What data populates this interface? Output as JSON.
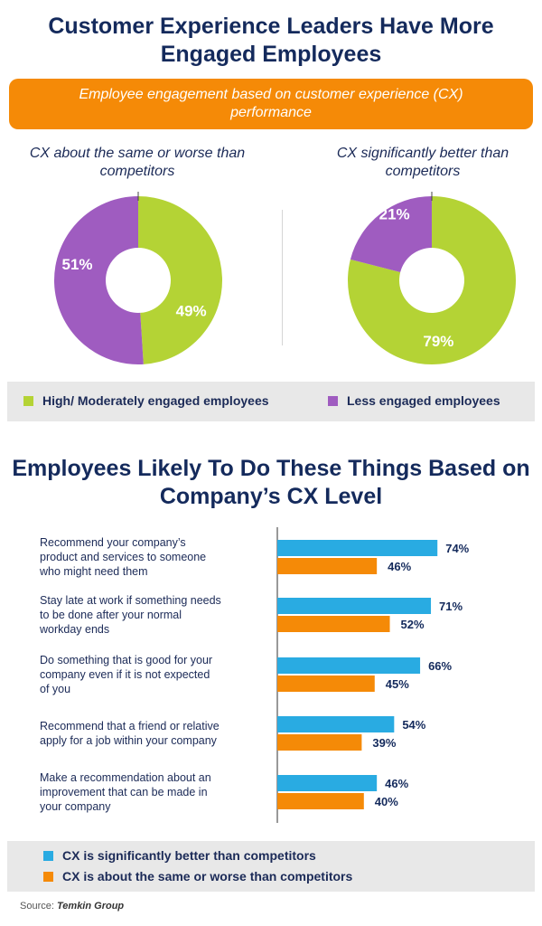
{
  "title": "Customer Experience Leaders Have More Engaged Employees",
  "banner": "Employee engagement based on customer experience (CX) performance",
  "colors": {
    "green": "#b4d335",
    "purple": "#9f5cc0",
    "blue": "#29abe2",
    "orange": "#f58a07",
    "navy": "#142a5c"
  },
  "donuts": {
    "left": {
      "caption": "CX about the same or worse than competitors",
      "high_label": "49%",
      "less_label": "51%"
    },
    "right": {
      "caption": "CX significantly better than competitors",
      "high_label": "79%",
      "less_label": "21%"
    }
  },
  "legend_top": {
    "high": "High/ Moderately engaged employees",
    "less": "Less engaged employees"
  },
  "title2": "Employees Likely To Do These Things Based on Company’s CX Level",
  "legend_bottom": {
    "better": "CX is significantly better than competitors",
    "same": "CX is about the same or worse than competitors"
  },
  "source": {
    "prefix": "Source:",
    "name": "Temkin Group"
  },
  "chart_data": [
    {
      "type": "pie",
      "title": "CX about the same or worse than competitors",
      "categories": [
        "High/ Moderately engaged employees",
        "Less engaged employees"
      ],
      "values": [
        49,
        51
      ]
    },
    {
      "type": "pie",
      "title": "CX significantly better than competitors",
      "categories": [
        "High/ Moderately engaged employees",
        "Less engaged employees"
      ],
      "values": [
        79,
        21
      ]
    },
    {
      "type": "bar",
      "orientation": "horizontal",
      "title": "Employees Likely To Do These Things Based on Company’s CX Level",
      "categories": [
        "Recommend your company’s product and services to someone who might need them",
        "Stay late at work if something needs to be done after your normal workday ends",
        "Do something that is good for your company even if it is not expected of you",
        "Recommend that a friend or relative apply for a job within your company",
        "Make a recommendation about an improvement that can be made in your company"
      ],
      "lines": [
        [
          "Recommend your company’s",
          "product and services to someone",
          "who might need them"
        ],
        [
          "Stay late at work if something needs",
          "to be done after your normal",
          "workday ends"
        ],
        [
          "Do something that is good for your",
          "company even if it is not expected",
          "of you"
        ],
        [
          "Recommend that a friend or relative",
          "apply for a job within your company"
        ],
        [
          "Make a recommendation about an",
          "improvement that can be made in",
          "your company"
        ]
      ],
      "series": [
        {
          "name": "CX is significantly better than competitors",
          "values": [
            74,
            71,
            66,
            54,
            46
          ],
          "labels": [
            "74%",
            "71%",
            "66%",
            "54%",
            "46%"
          ]
        },
        {
          "name": "CX is about the same or worse than competitors",
          "values": [
            46,
            52,
            45,
            39,
            40
          ],
          "labels": [
            "46%",
            "52%",
            "45%",
            "39%",
            "40%"
          ]
        }
      ],
      "xlim": [
        0,
        100
      ]
    }
  ]
}
